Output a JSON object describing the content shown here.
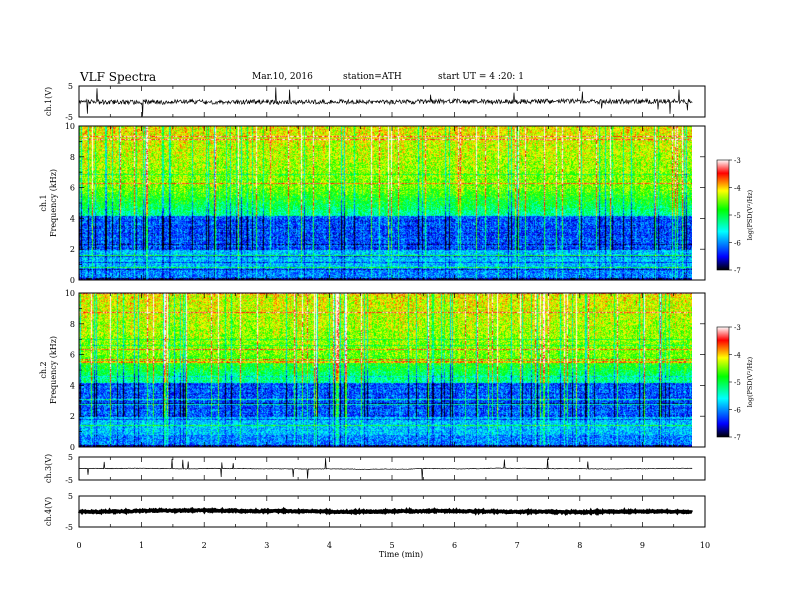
{
  "header": {
    "title": "VLF Spectra",
    "date": "Mar.10, 2016",
    "station": "station=ATH",
    "start": "start UT =  4 :20: 1"
  },
  "chart_data": [
    {
      "id": "ch1-waveform",
      "type": "line",
      "ylabel": "ch.1(V)",
      "xlim": [
        0,
        10
      ],
      "ylim": [
        -5,
        5
      ],
      "ytick_labels": [
        "5",
        "-5"
      ],
      "baseline": 0,
      "fluctuation": 1.5
    },
    {
      "id": "ch1-spectrogram",
      "type": "heatmap",
      "ylabel": "ch.1\nFrequency (kHz)",
      "xlim": [
        0,
        10
      ],
      "ylim": [
        0,
        10
      ],
      "ytick_labels": [
        "0",
        "2",
        "4",
        "6",
        "8",
        "10"
      ],
      "colorbar": {
        "label": "log(PSD(V²/Hz)",
        "range": [
          -7,
          -3
        ],
        "tick_labels": [
          "-3",
          "-4",
          "-5",
          "-6",
          "-7"
        ]
      }
    },
    {
      "id": "ch2-spectrogram",
      "type": "heatmap",
      "ylabel": "ch.2\nFrequency (kHz)",
      "xlim": [
        0,
        10
      ],
      "ylim": [
        0,
        10
      ],
      "ytick_labels": [
        "0",
        "2",
        "4",
        "6",
        "8",
        "10"
      ],
      "colorbar": {
        "label": "log(PSD(V²/Hz)",
        "range": [
          -7,
          -3
        ],
        "tick_labels": [
          "-3",
          "-4",
          "-5",
          "-6",
          "-7"
        ]
      }
    },
    {
      "id": "ch3-waveform",
      "type": "line",
      "ylabel": "ch.3(V)",
      "xlim": [
        0,
        10
      ],
      "ylim": [
        -5,
        5
      ],
      "ytick_labels": [
        "5",
        "-5"
      ],
      "baseline": 0,
      "fluctuation": 0.2
    },
    {
      "id": "ch4-waveform",
      "type": "line",
      "ylabel": "ch.4(V)",
      "xlim": [
        0,
        10
      ],
      "ylim": [
        -5,
        5
      ],
      "ytick_labels": [
        "5",
        "-5"
      ],
      "baseline": 0,
      "fluctuation": 0.4
    }
  ],
  "xaxis": {
    "label": "Time (min)",
    "tick_labels": [
      "0",
      "1",
      "2",
      "3",
      "4",
      "5",
      "6",
      "7",
      "8",
      "9",
      "10"
    ]
  },
  "data_end_min": 9.8,
  "colors": {
    "frame": "#000000",
    "colormap": [
      "#000000",
      "#0000ff",
      "#00ffff",
      "#00ff00",
      "#ffff00",
      "#ff0000",
      "#ffffff"
    ]
  }
}
